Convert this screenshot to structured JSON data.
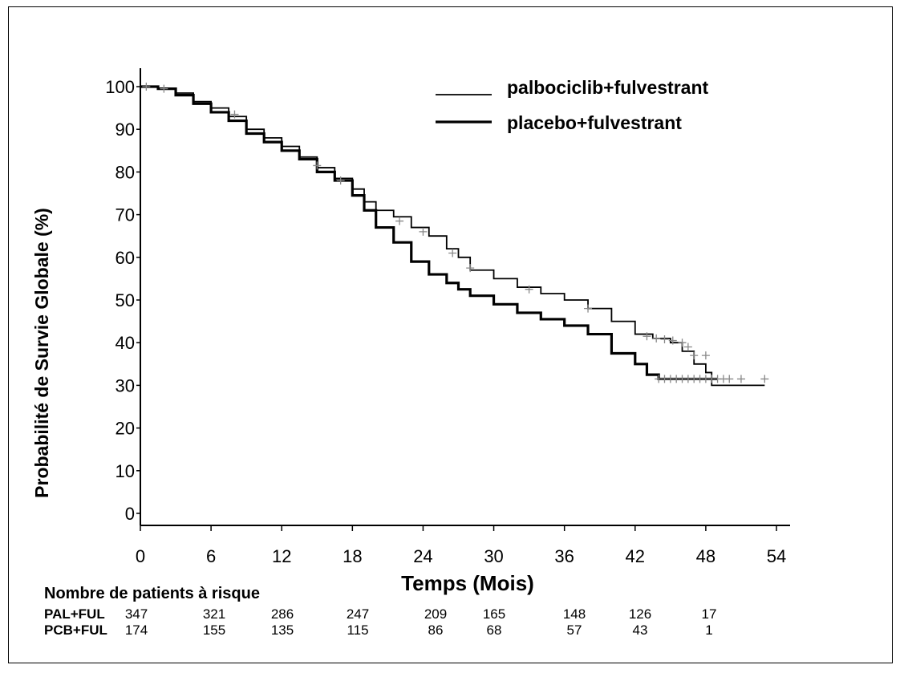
{
  "chart_data": {
    "type": "line",
    "subtype": "kaplan-meier",
    "ylabel": "Probabilité de Survie Globale (%)",
    "xlabel": "Temps (Mois)",
    "ylim": [
      0,
      100
    ],
    "xlim": [
      0,
      54
    ],
    "yticks": [
      "100",
      "90",
      "80",
      "70",
      "60",
      "50",
      "40",
      "30",
      "20",
      "10",
      "0"
    ],
    "xticks": [
      "0",
      "6",
      "12",
      "18",
      "24",
      "30",
      "36",
      "42",
      "48",
      "54"
    ],
    "legend_position": "top-right",
    "series": [
      {
        "name": "palbociclib+fulvestrant",
        "style": "thin",
        "color": "#000000",
        "points": [
          [
            0,
            100
          ],
          [
            1.5,
            99.5
          ],
          [
            3,
            98.5
          ],
          [
            4.5,
            96.5
          ],
          [
            6,
            95
          ],
          [
            7.5,
            93
          ],
          [
            9,
            90
          ],
          [
            10.5,
            88
          ],
          [
            12,
            86
          ],
          [
            13.5,
            83.5
          ],
          [
            15,
            81
          ],
          [
            16.5,
            78.5
          ],
          [
            18,
            76
          ],
          [
            19,
            73
          ],
          [
            20,
            71
          ],
          [
            21.5,
            69.5
          ],
          [
            23,
            67
          ],
          [
            24.5,
            65
          ],
          [
            26,
            62
          ],
          [
            27,
            60
          ],
          [
            28,
            57
          ],
          [
            30,
            55
          ],
          [
            32,
            53
          ],
          [
            34,
            51.5
          ],
          [
            36,
            50
          ],
          [
            38,
            48
          ],
          [
            40,
            45
          ],
          [
            42,
            42
          ],
          [
            43.5,
            41
          ],
          [
            45,
            40
          ],
          [
            46,
            38
          ],
          [
            47,
            35
          ],
          [
            48,
            33
          ],
          [
            48.5,
            30
          ],
          [
            53,
            30
          ]
        ]
      },
      {
        "name": "placebo+fulvestrant",
        "style": "thick",
        "color": "#000000",
        "points": [
          [
            0,
            100
          ],
          [
            1.5,
            99.5
          ],
          [
            3,
            98
          ],
          [
            4.5,
            96
          ],
          [
            6,
            94
          ],
          [
            7.5,
            92
          ],
          [
            9,
            89
          ],
          [
            10.5,
            87
          ],
          [
            12,
            85
          ],
          [
            13.5,
            83
          ],
          [
            15,
            80
          ],
          [
            16.5,
            78
          ],
          [
            18,
            74.5
          ],
          [
            19,
            71
          ],
          [
            20,
            67
          ],
          [
            21.5,
            63.5
          ],
          [
            23,
            59
          ],
          [
            24.5,
            56
          ],
          [
            26,
            54
          ],
          [
            27,
            52.5
          ],
          [
            28,
            51
          ],
          [
            30,
            49
          ],
          [
            32,
            47
          ],
          [
            34,
            45.5
          ],
          [
            36,
            44
          ],
          [
            38,
            42
          ],
          [
            40,
            37.5
          ],
          [
            42,
            35
          ],
          [
            43,
            32.5
          ],
          [
            44,
            31.5
          ],
          [
            46,
            31.5
          ],
          [
            48,
            31.5
          ],
          [
            49,
            31.5
          ]
        ]
      }
    ],
    "censor_marks": {
      "palbociclib+fulvestrant": [
        [
          0.5,
          100
        ],
        [
          2,
          99.5
        ],
        [
          8,
          93.5
        ],
        [
          15,
          81.5
        ],
        [
          17,
          78
        ],
        [
          22,
          68.5
        ],
        [
          24,
          66
        ],
        [
          26.5,
          61
        ],
        [
          28,
          57.5
        ],
        [
          33,
          52.5
        ],
        [
          38,
          48
        ],
        [
          43,
          41.5
        ],
        [
          43.8,
          41
        ],
        [
          44.5,
          40.8
        ],
        [
          45.2,
          40.5
        ],
        [
          46,
          40
        ],
        [
          46.5,
          39
        ],
        [
          47,
          37
        ],
        [
          48,
          37
        ]
      ],
      "placebo+fulvestrant": [
        [
          44,
          31.5
        ],
        [
          44.5,
          31.5
        ],
        [
          45,
          31.5
        ],
        [
          45.5,
          31.5
        ],
        [
          46,
          31.5
        ],
        [
          46.5,
          31.5
        ],
        [
          47,
          31.5
        ],
        [
          47.5,
          31.5
        ],
        [
          48,
          31.5
        ],
        [
          48.5,
          31.5
        ],
        [
          49,
          31.5
        ],
        [
          49.5,
          31.5
        ],
        [
          50,
          31.5
        ],
        [
          51,
          31.5
        ],
        [
          53,
          31.5
        ]
      ]
    },
    "risk_table": {
      "title": "Nombre de patients à risque",
      "rows": [
        {
          "label": "PAL+FUL",
          "values": [
            "347",
            "321",
            "286",
            "247",
            "209",
            "165",
            "148",
            "126",
            "17"
          ]
        },
        {
          "label": "PCB+FUL",
          "values": [
            "174",
            "155",
            "135",
            "115",
            "86",
            "68",
            "57",
            "43",
            "1"
          ]
        }
      ]
    }
  }
}
